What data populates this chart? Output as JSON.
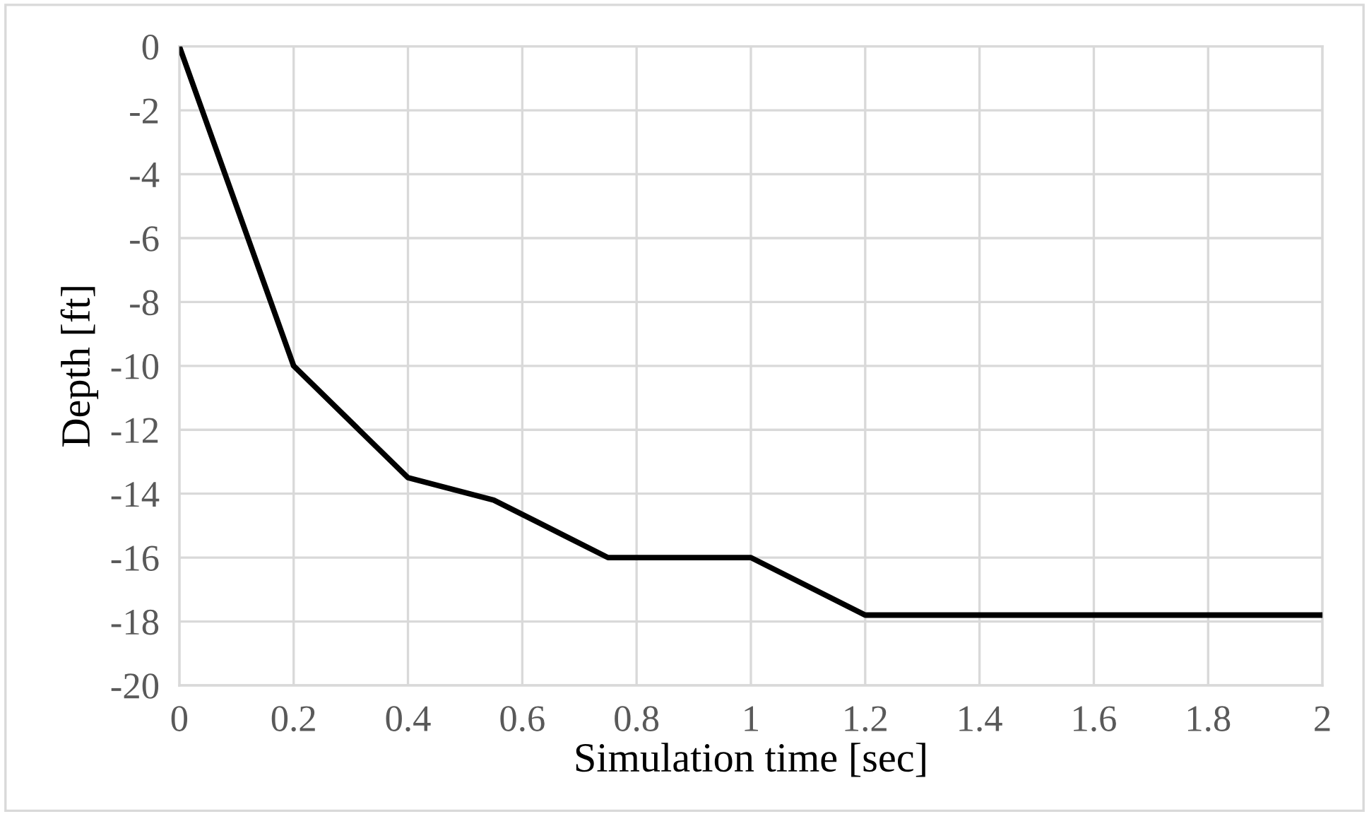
{
  "chart_data": {
    "type": "line",
    "xlabel": "Simulation time [sec]",
    "ylabel": "Depth [ft]",
    "x": [
      0,
      0.2,
      0.4,
      0.55,
      0.75,
      1,
      1.2,
      2
    ],
    "series": [
      {
        "color": "#000000",
        "values": [
          0,
          -10,
          -13.5,
          -14.2,
          -16,
          -16,
          -17.8,
          -17.8
        ]
      }
    ],
    "xlim": [
      0,
      2
    ],
    "xticks": [
      0,
      0.2,
      0.4,
      0.6,
      0.8,
      1,
      1.2,
      1.4,
      1.6,
      1.8,
      2
    ],
    "ylim": [
      -20,
      0
    ],
    "yticks": [
      0,
      -2,
      -4,
      -6,
      -8,
      -10,
      -12,
      -14,
      -16,
      -18,
      -20
    ],
    "grid": true,
    "marker": "none",
    "line_style": "solid"
  }
}
